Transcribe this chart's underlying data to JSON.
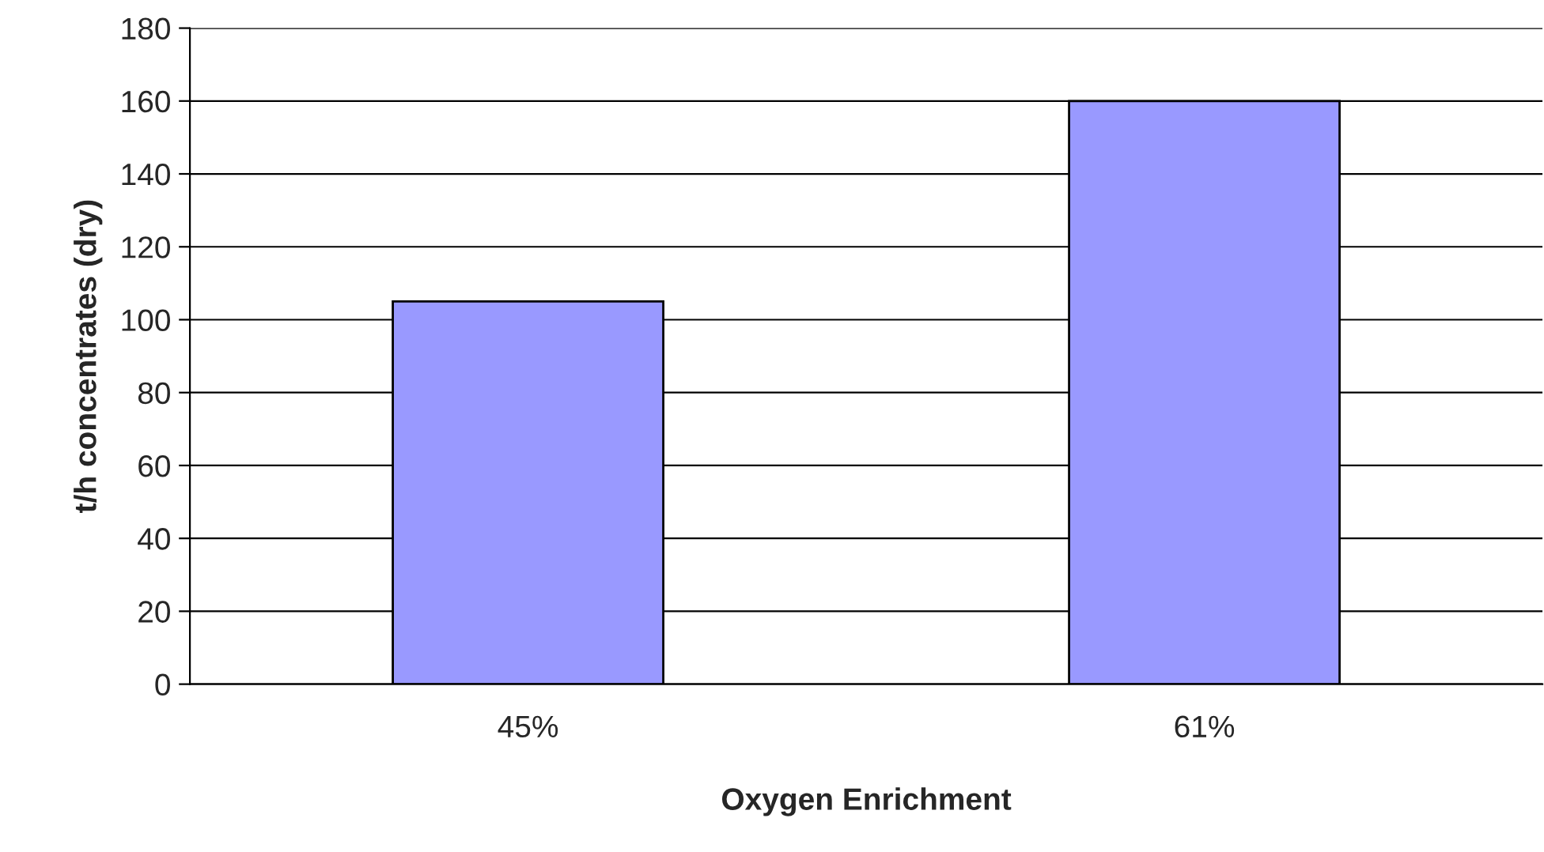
{
  "chart_data": {
    "type": "bar",
    "xlabel": "Oxygen Enrichment",
    "ylabel": "t/h concentrates (dry)",
    "categories": [
      "45%",
      "61%"
    ],
    "values": [
      105,
      160
    ],
    "color": "#9999ff",
    "ylim": [
      0,
      180
    ],
    "yticks": [
      0,
      20,
      40,
      60,
      80,
      100,
      120,
      140,
      160,
      180
    ],
    "grid": "y",
    "legend": false
  }
}
